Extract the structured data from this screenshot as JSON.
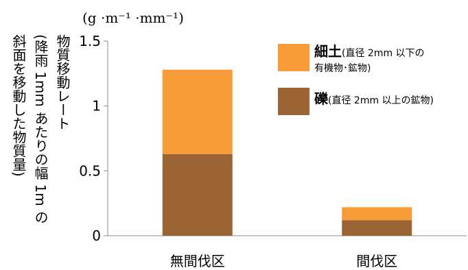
{
  "chart_data": {
    "type": "bar",
    "stacked": true,
    "unit_label": "(g ·m⁻¹ ·mm⁻¹)",
    "ylabel_lines": [
      "物質移動レート",
      "(降雨 1mm あたりの幅 1m の",
      "斜面を移動した物質量)"
    ],
    "categories": [
      "無間伐区",
      "間伐区"
    ],
    "ylim": [
      0,
      1.5
    ],
    "yticks": [
      "0",
      "0.5",
      "1",
      "1.5"
    ],
    "series": [
      {
        "name": "礫",
        "detail": "(直径 2mm 以上の鉱物)",
        "color": "#9a6434",
        "values": [
          0.63,
          0.12
        ]
      },
      {
        "name": "細土",
        "detail_lines": [
          "(直径 2mm 以下の",
          "有機物･鉱物)"
        ],
        "color": "#f99b38",
        "values": [
          0.65,
          0.1
        ]
      }
    ],
    "grid": false,
    "legend_position": "top-right"
  }
}
